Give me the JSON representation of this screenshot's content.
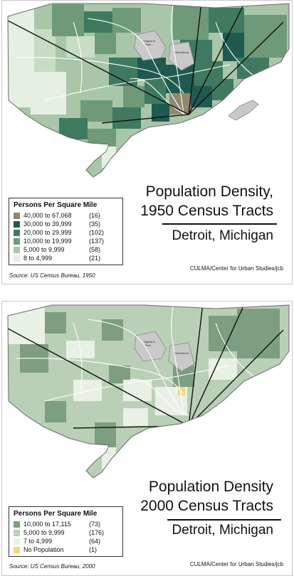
{
  "panels": [
    {
      "title_line1": "Population Density,",
      "title_line2": "1950 Census Tracts",
      "subtitle": "Detroit, Michigan",
      "credit": "CULMA/Center for Urban Studies/jcb",
      "source": "Source: US Census Bureau, 1950",
      "legend": {
        "title": "Persons Per Square Mile",
        "items": [
          {
            "range": "40,000 to 67,068",
            "count": "(16)",
            "color": "#8f8a6e"
          },
          {
            "range": "30,000 to 39,999",
            "count": "(35)",
            "color": "#1f5a50"
          },
          {
            "range": "20,000 to 29,999",
            "count": "(102)",
            "color": "#3f7a60"
          },
          {
            "range": "10,000 to 19,999",
            "count": "(137)",
            "color": "#6f9a78"
          },
          {
            "range": "5,000 to 9,999",
            "count": "(58)",
            "color": "#a9c6a8"
          },
          {
            "range": "8 to 4,999",
            "count": "(21)",
            "color": "#e6efe3"
          }
        ]
      }
    },
    {
      "title_line1": "Population Density",
      "title_line2": "2000 Census Tracts",
      "subtitle": "Detroit, Michigan",
      "credit": "CULMA/Center for Urban Studies/jcb",
      "source": "Source: US Census Bureau, 2000",
      "legend": {
        "title": "Persons Per Square Mile",
        "items": [
          {
            "range": "10,000 to 17,115",
            "count": "(73)",
            "color": "#7d9e80"
          },
          {
            "range": "5,000 to 9,999",
            "count": "(176)",
            "color": "#b9cfb6"
          },
          {
            "range": "7 to 4,999",
            "count": "(64)",
            "color": "#e9f0e6"
          },
          {
            "range": "No Population",
            "count": "(1)",
            "color": "#f2d77e"
          }
        ]
      }
    }
  ]
}
